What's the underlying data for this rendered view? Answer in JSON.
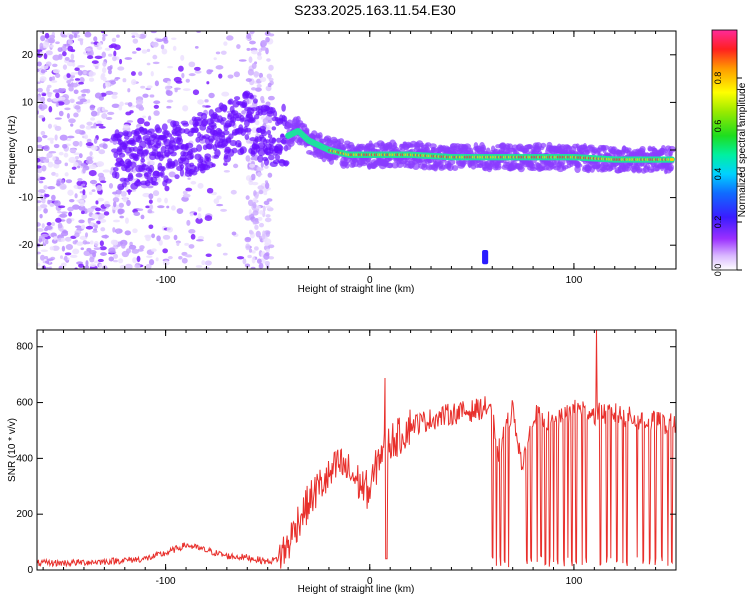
{
  "title": "S233.2025.163.11.54.E30",
  "colors": {
    "frame": "#000000",
    "snr_line": "#e8302c",
    "background": "#ffffff"
  },
  "chart_data": [
    {
      "type": "heatmap",
      "xlabel": "Height of straight line (km)",
      "ylabel": "Frequency (Hz)",
      "xlim": [
        -163,
        150
      ],
      "ylim": [
        -25,
        25
      ],
      "x_ticks": [
        -100,
        0,
        100
      ],
      "y_ticks": [
        -20,
        -10,
        0,
        10,
        20
      ],
      "grid": false,
      "colorbar": {
        "label": "Normalized spectral amplitude",
        "range": [
          0,
          1
        ],
        "ticks": [
          0.0,
          0.2,
          0.4,
          0.6,
          0.8
        ],
        "colormap": "rainbow (magenta-blue-cyan-green-yellow-red)"
      },
      "ridge": {
        "description": "Dominant frequency ridge vs height",
        "x": [
          -120,
          -100,
          -80,
          -60,
          -50,
          -40,
          -35,
          -30,
          -20,
          -10,
          0,
          20,
          40,
          60,
          80,
          100,
          120,
          140,
          148
        ],
        "y": [
          -2,
          -1,
          2,
          6,
          3,
          3,
          4,
          2,
          0,
          -1,
          -1,
          -1,
          -1.5,
          -1.5,
          -1.5,
          -1.5,
          -2,
          -2,
          -2
        ]
      }
    },
    {
      "type": "line",
      "xlabel": "Height of straight line (km)",
      "ylabel": "SNR (10 * v/v)",
      "xlim": [
        -163,
        150
      ],
      "ylim": [
        0,
        860
      ],
      "x_ticks": [
        -100,
        0,
        100
      ],
      "y_ticks": [
        0,
        200,
        400,
        600,
        800
      ],
      "grid": false,
      "series": [
        {
          "values_x": [
            -163,
            -150,
            -130,
            -110,
            -100,
            -90,
            -80,
            -70,
            -60,
            -50,
            -45,
            -40,
            -35,
            -30,
            -25,
            -20,
            -15,
            -10,
            -5,
            0,
            5,
            10,
            15,
            20,
            30,
            40,
            50,
            60,
            62,
            70,
            75,
            80,
            90,
            100,
            105,
            110,
            120,
            130,
            140,
            150
          ],
          "values_y": [
            25,
            25,
            30,
            40,
            60,
            90,
            70,
            50,
            45,
            30,
            40,
            90,
            180,
            240,
            300,
            330,
            380,
            350,
            310,
            280,
            420,
            460,
            480,
            520,
            540,
            560,
            570,
            590,
            400,
            580,
            360,
            560,
            520,
            570,
            580,
            560,
            560,
            540,
            530,
            520
          ]
        }
      ],
      "spikes": [
        {
          "x": 7.7,
          "y": 688
        },
        {
          "x": 111,
          "y": 860
        }
      ]
    }
  ]
}
